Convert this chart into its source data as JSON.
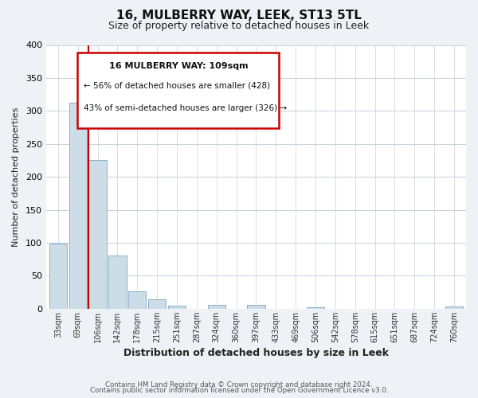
{
  "title": "16, MULBERRY WAY, LEEK, ST13 5TL",
  "subtitle": "Size of property relative to detached houses in Leek",
  "xlabel": "Distribution of detached houses by size in Leek",
  "ylabel": "Number of detached properties",
  "bar_labels": [
    "33sqm",
    "69sqm",
    "106sqm",
    "142sqm",
    "178sqm",
    "215sqm",
    "251sqm",
    "287sqm",
    "324sqm",
    "360sqm",
    "397sqm",
    "433sqm",
    "469sqm",
    "506sqm",
    "542sqm",
    "578sqm",
    "615sqm",
    "651sqm",
    "687sqm",
    "724sqm",
    "760sqm"
  ],
  "bar_values": [
    99,
    313,
    225,
    81,
    26,
    14,
    5,
    0,
    6,
    0,
    6,
    0,
    0,
    2,
    0,
    0,
    0,
    0,
    0,
    0,
    4
  ],
  "bar_color": "#ccdde8",
  "bar_edge_color": "#8ab0c8",
  "vline_x_index": 2,
  "vline_color": "#cc0000",
  "annotation_title": "16 MULBERRY WAY: 109sqm",
  "annotation_line1": "← 56% of detached houses are smaller (428)",
  "annotation_line2": "43% of semi-detached houses are larger (326) →",
  "annotation_box_color": "#ffffff",
  "annotation_box_edge": "#cc0000",
  "footer_line1": "Contains HM Land Registry data © Crown copyright and database right 2024.",
  "footer_line2": "Contains public sector information licensed under the Open Government Licence v3.0.",
  "ylim": [
    0,
    400
  ],
  "yticks": [
    0,
    50,
    100,
    150,
    200,
    250,
    300,
    350,
    400
  ],
  "figsize": [
    6.0,
    5.0
  ],
  "dpi": 100,
  "bg_color": "#eef2f6",
  "plot_bg_color": "#ffffff",
  "grid_color": "#c8d0da"
}
